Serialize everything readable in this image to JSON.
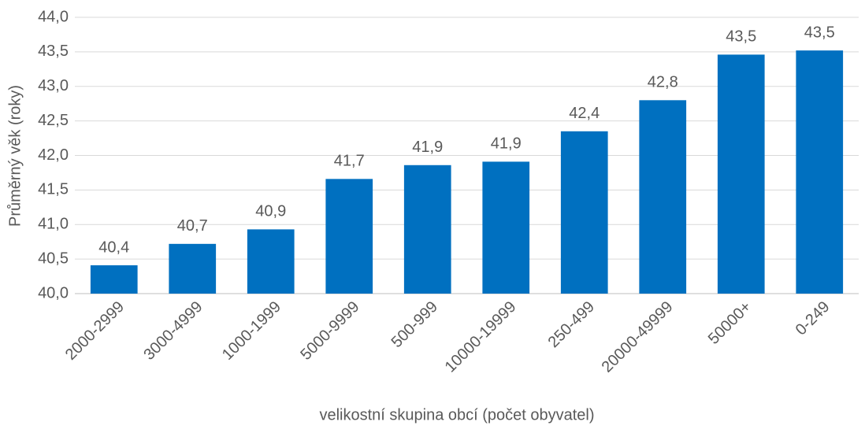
{
  "chart_data": {
    "type": "bar",
    "y_label": "Průměrný věk (roky)",
    "x_label": "velikostní skupina obcí (počet obyvatel)",
    "categories": [
      "2000-2999",
      "3000-4999",
      "1000-1999",
      "5000-9999",
      "500-999",
      "10000-19999",
      "250-499",
      "20000-49999",
      "50000+",
      "0-249"
    ],
    "values": [
      40.41,
      40.72,
      40.93,
      41.66,
      41.86,
      41.91,
      42.35,
      42.8,
      43.46,
      43.52
    ],
    "value_labels": [
      "40,4",
      "40,7",
      "40,9",
      "41,7",
      "41,9",
      "41,9",
      "42,4",
      "42,8",
      "43,5",
      "43,5"
    ],
    "color": "#0070c0",
    "ylim": [
      40.0,
      44.0
    ],
    "yticks": [
      {
        "value": 40.0,
        "label": "40,0"
      },
      {
        "value": 40.5,
        "label": "40,5"
      },
      {
        "value": 41.0,
        "label": "41,0"
      },
      {
        "value": 41.5,
        "label": "41,5"
      },
      {
        "value": 42.0,
        "label": "42,0"
      },
      {
        "value": 42.5,
        "label": "42,5"
      },
      {
        "value": 43.0,
        "label": "43,0"
      },
      {
        "value": 43.5,
        "label": "43,5"
      },
      {
        "value": 44.0,
        "label": "44,0"
      }
    ],
    "grid": true
  }
}
